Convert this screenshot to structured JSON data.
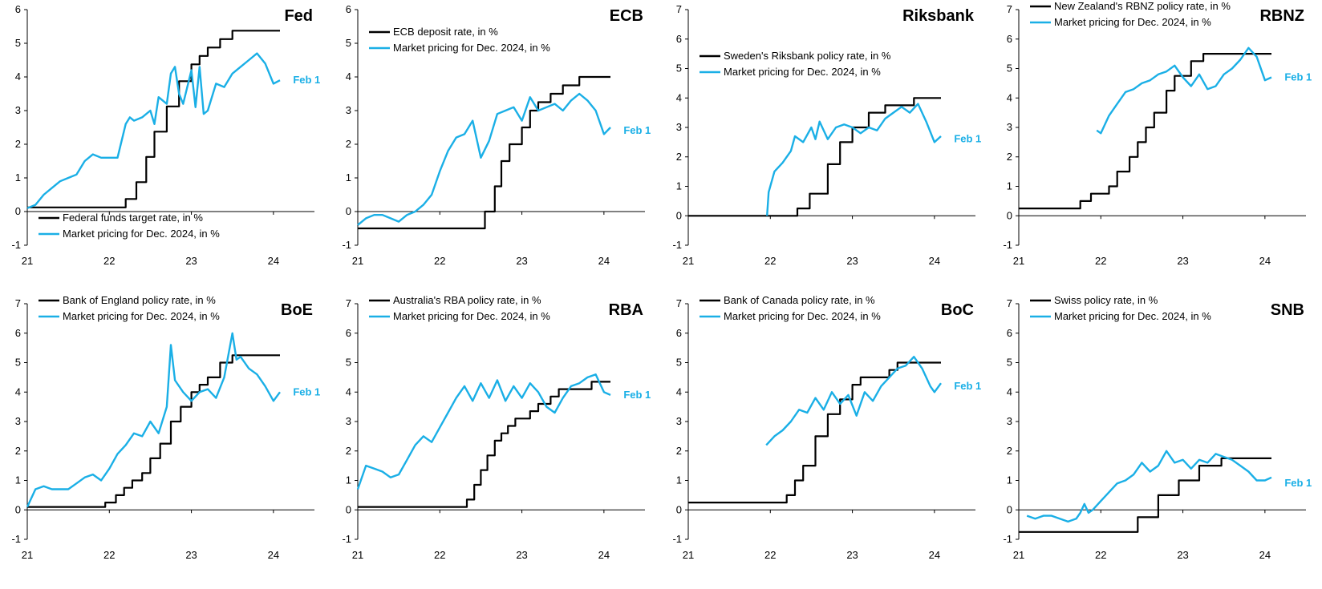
{
  "chart_data": [
    {
      "type": "line",
      "title": "Fed",
      "ylim": [
        -1,
        6
      ],
      "yticks": [
        -1,
        0,
        1,
        2,
        3,
        4,
        5,
        6
      ],
      "xlim": [
        21,
        24.5
      ],
      "xticks": [
        "21",
        "22",
        "23",
        "24"
      ],
      "legend": "bottom-left",
      "annotation": {
        "text": "Feb 1",
        "x": 24.2,
        "y": 3.9
      },
      "series": [
        {
          "name": "Federal funds target rate, in %",
          "color": "#000000",
          "step": true,
          "x": [
            21.0,
            22.2,
            22.33,
            22.45,
            22.55,
            22.7,
            22.85,
            23.0,
            23.1,
            23.2,
            23.35,
            23.5,
            23.6,
            24.08
          ],
          "y": [
            0.125,
            0.375,
            0.875,
            1.625,
            2.375,
            3.125,
            3.875,
            4.375,
            4.625,
            4.875,
            5.125,
            5.375,
            5.375,
            5.375
          ]
        },
        {
          "name": "Market pricing for Dec. 2024, in %",
          "color": "#1AAFE6",
          "x": [
            21.0,
            21.1,
            21.2,
            21.3,
            21.4,
            21.5,
            21.6,
            21.7,
            21.8,
            21.9,
            22.0,
            22.1,
            22.2,
            22.25,
            22.3,
            22.4,
            22.5,
            22.55,
            22.6,
            22.7,
            22.75,
            22.8,
            22.85,
            22.9,
            23.0,
            23.05,
            23.1,
            23.15,
            23.2,
            23.3,
            23.4,
            23.5,
            23.6,
            23.7,
            23.8,
            23.9,
            24.0,
            24.08
          ],
          "y": [
            0.1,
            0.2,
            0.5,
            0.7,
            0.9,
            1.0,
            1.1,
            1.5,
            1.7,
            1.6,
            1.6,
            1.6,
            2.6,
            2.8,
            2.7,
            2.8,
            3.0,
            2.6,
            3.4,
            3.2,
            4.1,
            4.3,
            3.5,
            3.2,
            4.2,
            3.1,
            4.3,
            2.9,
            3.0,
            3.8,
            3.7,
            4.1,
            4.3,
            4.5,
            4.7,
            4.4,
            3.8,
            3.9
          ]
        }
      ]
    },
    {
      "type": "line",
      "title": "ECB",
      "ylim": [
        -1,
        6
      ],
      "yticks": [
        -1,
        0,
        1,
        2,
        3,
        4,
        5,
        6
      ],
      "xlim": [
        21,
        24.5
      ],
      "xticks": [
        "21",
        "22",
        "23",
        "24"
      ],
      "legend": "top-left",
      "annotation": {
        "text": "Feb 1",
        "x": 24.2,
        "y": 2.4
      },
      "series": [
        {
          "name": "ECB deposit rate, in %",
          "color": "#000000",
          "step": true,
          "x": [
            21.0,
            22.55,
            22.67,
            22.75,
            22.85,
            23.0,
            23.1,
            23.2,
            23.35,
            23.5,
            23.6,
            23.7,
            24.08
          ],
          "y": [
            -0.5,
            0.0,
            0.75,
            1.5,
            2.0,
            2.5,
            3.0,
            3.25,
            3.5,
            3.75,
            3.75,
            4.0,
            4.0
          ]
        },
        {
          "name": "Market pricing for Dec. 2024, in %",
          "color": "#1AAFE6",
          "x": [
            21.0,
            21.1,
            21.2,
            21.3,
            21.4,
            21.5,
            21.6,
            21.7,
            21.8,
            21.9,
            22.0,
            22.1,
            22.2,
            22.3,
            22.4,
            22.5,
            22.6,
            22.7,
            22.8,
            22.9,
            23.0,
            23.1,
            23.2,
            23.3,
            23.4,
            23.5,
            23.6,
            23.7,
            23.8,
            23.9,
            24.0,
            24.08
          ],
          "y": [
            -0.4,
            -0.2,
            -0.1,
            -0.1,
            -0.2,
            -0.3,
            -0.1,
            0.0,
            0.2,
            0.5,
            1.2,
            1.8,
            2.2,
            2.3,
            2.7,
            1.6,
            2.1,
            2.9,
            3.0,
            3.1,
            2.7,
            3.4,
            3.0,
            3.1,
            3.2,
            3.0,
            3.3,
            3.5,
            3.3,
            3.0,
            2.3,
            2.5
          ]
        }
      ]
    },
    {
      "type": "line",
      "title": "Riksbank",
      "ylim": [
        -1,
        7
      ],
      "yticks": [
        -1,
        0,
        1,
        2,
        3,
        4,
        5,
        6,
        7
      ],
      "xlim": [
        21,
        24.5
      ],
      "xticks": [
        "21",
        "22",
        "23",
        "24"
      ],
      "legend": "top-left",
      "annotation": {
        "text": "Feb 1",
        "x": 24.2,
        "y": 2.6
      },
      "series": [
        {
          "name": "Sweden's Riksbank policy rate, in %",
          "color": "#000000",
          "step": true,
          "x": [
            21.0,
            22.33,
            22.48,
            22.7,
            22.85,
            23.0,
            23.2,
            23.4,
            23.6,
            23.75,
            24.08
          ],
          "y": [
            0.0,
            0.25,
            0.75,
            1.75,
            2.5,
            3.0,
            3.5,
            3.75,
            3.75,
            4.0,
            4.0
          ]
        },
        {
          "name": "Market pricing for Dec. 2024, in %",
          "color": "#1AAFE6",
          "x": [
            21.96,
            21.98,
            22.05,
            22.15,
            22.25,
            22.3,
            22.4,
            22.5,
            22.55,
            22.6,
            22.7,
            22.8,
            22.9,
            23.0,
            23.1,
            23.2,
            23.3,
            23.4,
            23.5,
            23.6,
            23.7,
            23.8,
            23.9,
            24.0,
            24.08
          ],
          "y": [
            0.0,
            0.8,
            1.5,
            1.8,
            2.2,
            2.7,
            2.5,
            3.0,
            2.6,
            3.2,
            2.6,
            3.0,
            3.1,
            3.0,
            2.8,
            3.0,
            2.9,
            3.3,
            3.5,
            3.7,
            3.5,
            3.8,
            3.2,
            2.5,
            2.7
          ]
        }
      ]
    },
    {
      "type": "line",
      "title": "RBNZ",
      "ylim": [
        -1,
        7
      ],
      "yticks": [
        -1,
        0,
        1,
        2,
        3,
        4,
        5,
        6,
        7
      ],
      "xlim": [
        21,
        24.5
      ],
      "xticks": [
        "21",
        "22",
        "23",
        "24"
      ],
      "legend": "top-left",
      "annotation": {
        "text": "Feb 1",
        "x": 24.2,
        "y": 4.7
      },
      "series": [
        {
          "name": "New Zealand's RBNZ policy rate, in %",
          "color": "#000000",
          "step": true,
          "x": [
            21.0,
            21.75,
            21.88,
            22.1,
            22.2,
            22.35,
            22.45,
            22.55,
            22.65,
            22.8,
            22.9,
            23.1,
            23.25,
            23.45,
            24.08
          ],
          "y": [
            0.25,
            0.5,
            0.75,
            1.0,
            1.5,
            2.0,
            2.5,
            3.0,
            3.5,
            4.25,
            4.75,
            5.25,
            5.5,
            5.5,
            5.5
          ]
        },
        {
          "name": "Market pricing for Dec. 2024, in %",
          "color": "#1AAFE6",
          "x": [
            21.95,
            22.0,
            22.1,
            22.2,
            22.3,
            22.4,
            22.5,
            22.6,
            22.7,
            22.8,
            22.9,
            23.0,
            23.1,
            23.2,
            23.3,
            23.4,
            23.5,
            23.6,
            23.7,
            23.8,
            23.9,
            24.0,
            24.08
          ],
          "y": [
            2.9,
            2.8,
            3.4,
            3.8,
            4.2,
            4.3,
            4.5,
            4.6,
            4.8,
            4.9,
            5.1,
            4.7,
            4.4,
            4.8,
            4.3,
            4.4,
            4.8,
            5.0,
            5.3,
            5.7,
            5.4,
            4.6,
            4.7
          ]
        }
      ]
    },
    {
      "type": "line",
      "title": "BoE",
      "ylim": [
        -1,
        7
      ],
      "yticks": [
        -1,
        0,
        1,
        2,
        3,
        4,
        5,
        6,
        7
      ],
      "xlim": [
        21,
        24.5
      ],
      "xticks": [
        "21",
        "22",
        "23",
        "24"
      ],
      "legend": "top-left",
      "annotation": {
        "text": "Feb 1",
        "x": 24.2,
        "y": 4.0
      },
      "series": [
        {
          "name": "Bank of England policy rate, in %",
          "color": "#000000",
          "step": true,
          "x": [
            21.0,
            21.95,
            22.08,
            22.18,
            22.28,
            22.4,
            22.5,
            22.62,
            22.75,
            22.87,
            23.0,
            23.1,
            23.2,
            23.35,
            23.5,
            23.6,
            23.7,
            24.08
          ],
          "y": [
            0.1,
            0.25,
            0.5,
            0.75,
            1.0,
            1.25,
            1.75,
            2.25,
            3.0,
            3.5,
            4.0,
            4.25,
            4.5,
            5.0,
            5.25,
            5.25,
            5.25,
            5.25
          ]
        },
        {
          "name": "Market pricing for Dec. 2024, in %",
          "color": "#1AAFE6",
          "x": [
            21.0,
            21.1,
            21.2,
            21.3,
            21.4,
            21.5,
            21.6,
            21.7,
            21.8,
            21.9,
            22.0,
            22.1,
            22.2,
            22.3,
            22.4,
            22.5,
            22.6,
            22.7,
            22.75,
            22.8,
            22.9,
            23.0,
            23.1,
            23.2,
            23.3,
            23.4,
            23.5,
            23.55,
            23.6,
            23.7,
            23.8,
            23.9,
            24.0,
            24.08
          ],
          "y": [
            0.1,
            0.7,
            0.8,
            0.7,
            0.7,
            0.7,
            0.9,
            1.1,
            1.2,
            1.0,
            1.4,
            1.9,
            2.2,
            2.6,
            2.5,
            3.0,
            2.6,
            3.5,
            5.6,
            4.4,
            4.0,
            3.7,
            4.0,
            4.1,
            3.8,
            4.5,
            6.0,
            5.1,
            5.2,
            4.8,
            4.6,
            4.2,
            3.7,
            4.0
          ]
        }
      ]
    },
    {
      "type": "line",
      "title": "RBA",
      "ylim": [
        -1,
        7
      ],
      "yticks": [
        -1,
        0,
        1,
        2,
        3,
        4,
        5,
        6,
        7
      ],
      "xlim": [
        21,
        24.5
      ],
      "xticks": [
        "21",
        "22",
        "23",
        "24"
      ],
      "legend": "top-left",
      "annotation": {
        "text": "Feb 1",
        "x": 24.2,
        "y": 3.9
      },
      "series": [
        {
          "name": "Australia's RBA policy rate, in %",
          "color": "#000000",
          "step": true,
          "x": [
            21.0,
            22.33,
            22.42,
            22.5,
            22.58,
            22.67,
            22.75,
            22.83,
            22.92,
            23.1,
            23.2,
            23.35,
            23.45,
            23.85,
            24.08
          ],
          "y": [
            0.1,
            0.35,
            0.85,
            1.35,
            1.85,
            2.35,
            2.6,
            2.85,
            3.1,
            3.35,
            3.6,
            3.85,
            4.1,
            4.35,
            4.35
          ]
        },
        {
          "name": "Market pricing for Dec. 2024, in %",
          "color": "#1AAFE6",
          "x": [
            21.0,
            21.1,
            21.2,
            21.3,
            21.4,
            21.5,
            21.6,
            21.7,
            21.8,
            21.9,
            22.0,
            22.1,
            22.2,
            22.3,
            22.4,
            22.5,
            22.6,
            22.7,
            22.8,
            22.9,
            23.0,
            23.1,
            23.2,
            23.3,
            23.4,
            23.5,
            23.6,
            23.7,
            23.8,
            23.9,
            24.0,
            24.08
          ],
          "y": [
            0.7,
            1.5,
            1.4,
            1.3,
            1.1,
            1.2,
            1.7,
            2.2,
            2.5,
            2.3,
            2.8,
            3.3,
            3.8,
            4.2,
            3.7,
            4.3,
            3.8,
            4.4,
            3.7,
            4.2,
            3.8,
            4.3,
            4.0,
            3.5,
            3.3,
            3.8,
            4.2,
            4.3,
            4.5,
            4.6,
            4.0,
            3.9
          ]
        }
      ]
    },
    {
      "type": "line",
      "title": "BoC",
      "ylim": [
        -1,
        7
      ],
      "yticks": [
        -1,
        0,
        1,
        2,
        3,
        4,
        5,
        6,
        7
      ],
      "xlim": [
        21,
        24.5
      ],
      "xticks": [
        "21",
        "22",
        "23",
        "24"
      ],
      "legend": "top-left",
      "annotation": {
        "text": "Feb 1",
        "x": 24.2,
        "y": 4.2
      },
      "series": [
        {
          "name": "Bank of Canada policy rate, in %",
          "color": "#000000",
          "step": true,
          "x": [
            21.0,
            22.2,
            22.3,
            22.4,
            22.55,
            22.7,
            22.85,
            23.0,
            23.1,
            23.45,
            23.55,
            24.08
          ],
          "y": [
            0.25,
            0.5,
            1.0,
            1.5,
            2.5,
            3.25,
            3.75,
            4.25,
            4.5,
            4.75,
            5.0,
            5.0
          ]
        },
        {
          "name": "Market pricing for Dec. 2024, in %",
          "color": "#1AAFE6",
          "x": [
            21.95,
            22.05,
            22.15,
            22.25,
            22.35,
            22.45,
            22.55,
            22.65,
            22.75,
            22.85,
            22.95,
            23.05,
            23.15,
            23.25,
            23.35,
            23.45,
            23.55,
            23.65,
            23.75,
            23.85,
            23.95,
            24.0,
            24.08
          ],
          "y": [
            2.2,
            2.5,
            2.7,
            3.0,
            3.4,
            3.3,
            3.8,
            3.4,
            4.0,
            3.6,
            3.9,
            3.2,
            4.0,
            3.7,
            4.2,
            4.5,
            4.8,
            4.9,
            5.2,
            4.8,
            4.2,
            4.0,
            4.3
          ]
        }
      ]
    },
    {
      "type": "line",
      "title": "SNB",
      "ylim": [
        -1,
        7
      ],
      "yticks": [
        -1,
        0,
        1,
        2,
        3,
        4,
        5,
        6,
        7
      ],
      "xlim": [
        21,
        24.5
      ],
      "xticks": [
        "21",
        "22",
        "23",
        "24"
      ],
      "legend": "top-left",
      "annotation": {
        "text": "Feb 1",
        "x": 24.2,
        "y": 0.9
      },
      "series": [
        {
          "name": "Swiss policy rate, in %",
          "color": "#000000",
          "step": true,
          "x": [
            21.0,
            22.45,
            22.7,
            22.95,
            23.2,
            23.47,
            24.08
          ],
          "y": [
            -0.75,
            -0.25,
            0.5,
            1.0,
            1.5,
            1.75,
            1.75
          ]
        },
        {
          "name": "Market pricing for Dec. 2024, in %",
          "color": "#1AAFE6",
          "x": [
            21.1,
            21.2,
            21.3,
            21.4,
            21.5,
            21.6,
            21.7,
            21.75,
            21.8,
            21.85,
            21.9,
            22.0,
            22.1,
            22.2,
            22.3,
            22.4,
            22.5,
            22.6,
            22.7,
            22.8,
            22.9,
            23.0,
            23.1,
            23.2,
            23.3,
            23.4,
            23.5,
            23.6,
            23.7,
            23.8,
            23.9,
            24.0,
            24.08
          ],
          "y": [
            -0.2,
            -0.3,
            -0.2,
            -0.2,
            -0.3,
            -0.4,
            -0.3,
            -0.1,
            0.2,
            -0.1,
            0.0,
            0.3,
            0.6,
            0.9,
            1.0,
            1.2,
            1.6,
            1.3,
            1.5,
            2.0,
            1.6,
            1.7,
            1.4,
            1.7,
            1.6,
            1.9,
            1.8,
            1.7,
            1.5,
            1.3,
            1.0,
            1.0,
            1.1
          ]
        }
      ]
    }
  ]
}
